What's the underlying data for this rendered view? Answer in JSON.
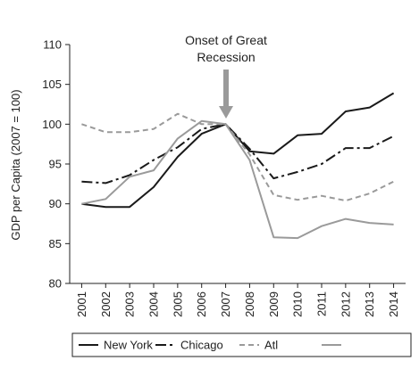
{
  "chart_data": {
    "type": "line",
    "title": "",
    "xlabel": "",
    "ylabel": "GDP per Capita (2007 = 100)",
    "ylim": [
      80,
      110
    ],
    "yticks": [
      "80",
      "85",
      "90",
      "95",
      "100",
      "105",
      "110"
    ],
    "x": [
      "2001",
      "2002",
      "2003",
      "2004",
      "2005",
      "2006",
      "2007",
      "2008",
      "2009",
      "2010",
      "2011",
      "2012",
      "2013",
      "2014"
    ],
    "annotation": {
      "text_line1": "Onset of Great",
      "text_line2": "Recession",
      "x": "2007"
    },
    "grid": false,
    "legend_position": "bottom",
    "series": [
      {
        "name": "New York",
        "color": "#1a1a1a",
        "dash": "solid",
        "values": [
          90.0,
          89.6,
          89.6,
          92.1,
          95.9,
          98.8,
          100.0,
          96.6,
          96.3,
          98.6,
          98.8,
          101.6,
          102.1,
          103.9
        ]
      },
      {
        "name": "Chicago",
        "color": "#1a1a1a",
        "dash": "longdash",
        "values": [
          92.8,
          92.6,
          93.6,
          95.5,
          97.1,
          99.4,
          100.0,
          96.9,
          93.2,
          94.0,
          95.0,
          97.0,
          97.0,
          98.5
        ]
      },
      {
        "name": "Atl",
        "color": "#9a9a9a",
        "dash": "dash",
        "values": [
          100.0,
          99.0,
          99.0,
          99.4,
          101.3,
          100.0,
          100.0,
          96.2,
          91.1,
          90.5,
          91.0,
          90.4,
          91.3,
          92.8
        ]
      },
      {
        "name": "",
        "color": "#9a9a9a",
        "dash": "solid",
        "values": [
          90.0,
          90.6,
          93.4,
          94.2,
          98.2,
          100.4,
          100.0,
          95.5,
          85.8,
          85.7,
          87.2,
          88.1,
          87.6,
          87.4
        ]
      }
    ],
    "legend": [
      {
        "label": "New York",
        "color": "#1a1a1a",
        "dash": "solid"
      },
      {
        "label": "Chicago",
        "color": "#1a1a1a",
        "dash": "longdash"
      },
      {
        "label": "Atl",
        "color": "#9a9a9a",
        "dash": "dash"
      },
      {
        "label": "",
        "color": "#9a9a9a",
        "dash": "solid"
      }
    ]
  }
}
